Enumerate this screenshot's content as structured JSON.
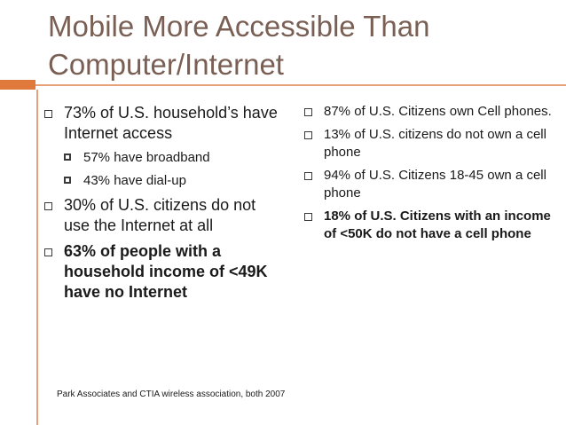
{
  "slide": {
    "title": "Mobile More Accessible Than Computer/Internet",
    "accent_color": "#e07a3c",
    "title_color": "#7a5f54"
  },
  "left": {
    "b1": "73% of U.S. household’s have Internet access",
    "b1_sub1": "57% have broadband",
    "b1_sub2": "43% have dial-up",
    "b2": "30% of U.S. citizens do not use the Internet at all",
    "b3": "63% of people with a household income of <49K have no Internet"
  },
  "right": {
    "b1": "87% of U.S. Citizens own Cell phones.",
    "b2": "13% of U.S. citizens do not own a cell phone",
    "b3": "94% of U.S. Citizens 18-45 own a cell phone",
    "b4": "18% of U.S. Citizens with an income of <50K do not have a cell phone"
  },
  "source": "Park Associates and CTIA wireless association, both 2007"
}
